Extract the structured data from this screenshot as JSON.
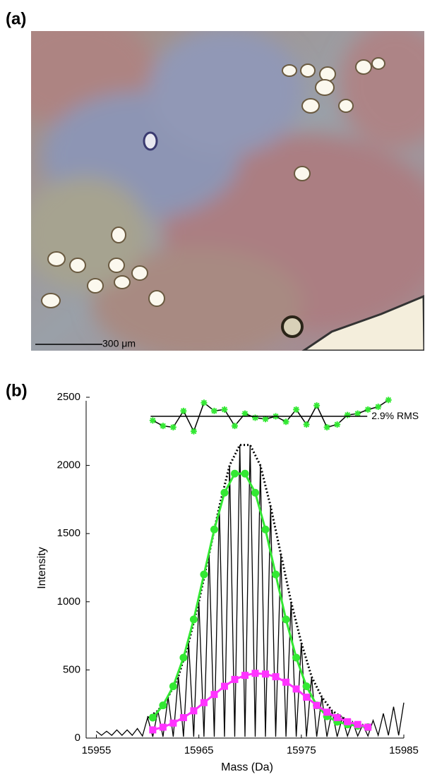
{
  "panel_a": {
    "label": "(a)",
    "scale_bar": "300 μm"
  },
  "chart_data": {
    "type": "line",
    "panel_label": "(b)",
    "xlabel": "Mass (Da)",
    "ylabel": "Intensity",
    "xlim": [
      15954,
      15985
    ],
    "ylim": [
      0,
      2500
    ],
    "xticks": [
      15955,
      15965,
      15975,
      15985
    ],
    "yticks": [
      0,
      500,
      1000,
      1500,
      2000,
      2500
    ],
    "rms_line": {
      "label": "2.9% RMS",
      "value": 2360
    },
    "series": [
      {
        "style": "line",
        "color": "#000000",
        "x": [
          15955,
          15955.5,
          15956,
          15956.5,
          15957,
          15957.5,
          15958,
          15958.5,
          15959,
          15959.5,
          15960,
          15960.5,
          15961,
          15961.5,
          15962,
          15962.5,
          15963,
          15963.5,
          15964,
          15964.5,
          15965,
          15965.5,
          15966,
          15966.5,
          15967,
          15967.5,
          15968,
          15968.5,
          15969,
          15969.5,
          15970,
          15970.5,
          15971,
          15971.5,
          15972,
          15972.5,
          15973,
          15973.5,
          15974,
          15974.5,
          15975,
          15975.5,
          15976,
          15976.5,
          15977,
          15977.5,
          15978,
          15978.5,
          15979,
          15979.5,
          15980,
          15980.5,
          15981,
          15981.5,
          15982,
          15982.5,
          15983,
          15983.5,
          15984,
          15984.5,
          15985
        ],
        "values": [
          50,
          20,
          50,
          20,
          60,
          20,
          60,
          20,
          70,
          15,
          150,
          10,
          200,
          10,
          300,
          10,
          450,
          10,
          700,
          10,
          1000,
          10,
          1350,
          10,
          1700,
          10,
          2000,
          10,
          2150,
          10,
          2150,
          10,
          2000,
          10,
          1700,
          10,
          1350,
          10,
          1000,
          10,
          700,
          10,
          450,
          10,
          300,
          10,
          200,
          10,
          150,
          15,
          120,
          15,
          100,
          15,
          130,
          20,
          180,
          20,
          230,
          20,
          260
        ]
      },
      {
        "style": "dotted",
        "color": "#000000",
        "x": [
          15960,
          15961,
          15962,
          15963,
          15964,
          15965,
          15966,
          15967,
          15968,
          15969,
          15970,
          15971,
          15972,
          15973,
          15974,
          15975,
          15976,
          15977,
          15978,
          15979,
          15980
        ],
        "values": [
          150,
          200,
          300,
          450,
          700,
          1000,
          1350,
          1700,
          2000,
          2150,
          2150,
          2000,
          1700,
          1350,
          1000,
          700,
          450,
          300,
          200,
          150,
          120
        ]
      },
      {
        "style": "circles",
        "color": "#33e833",
        "x": [
          15960.5,
          15961.5,
          15962.5,
          15963.5,
          15964.5,
          15965.5,
          15966.5,
          15967.5,
          15968.5,
          15969.5,
          15970.5,
          15971.5,
          15972.5,
          15973.5,
          15974.5,
          15975.5,
          15976.5,
          15977.5,
          15978.5,
          15979.5,
          15980.5,
          15981.5
        ],
        "values": [
          150,
          240,
          380,
          590,
          870,
          1200,
          1530,
          1800,
          1940,
          1940,
          1800,
          1530,
          1200,
          870,
          590,
          380,
          240,
          160,
          120,
          100,
          90,
          80
        ]
      },
      {
        "style": "squares",
        "color": "#ff33ff",
        "x": [
          15960.5,
          15961.5,
          15962.5,
          15963.5,
          15964.5,
          15965.5,
          15966.5,
          15967.5,
          15968.5,
          15969.5,
          15970.5,
          15971.5,
          15972.5,
          15973.5,
          15974.5,
          15975.5,
          15976.5,
          15977.5,
          15978.5,
          15979.5,
          15980.5,
          15981.5
        ],
        "values": [
          60,
          80,
          110,
          150,
          200,
          260,
          320,
          380,
          430,
          460,
          475,
          470,
          450,
          410,
          360,
          300,
          240,
          190,
          150,
          120,
          100,
          80
        ]
      },
      {
        "style": "stars",
        "color": "#33e833",
        "x": [
          15960.5,
          15961.5,
          15962.5,
          15963.5,
          15964.5,
          15965.5,
          15966.5,
          15967.5,
          15968.5,
          15969.5,
          15970.5,
          15971.5,
          15972.5,
          15973.5,
          15974.5,
          15975.5,
          15976.5,
          15977.5,
          15978.5,
          15979.5,
          15980.5,
          15981.5,
          15982.5,
          15983.5
        ],
        "values": [
          2330,
          2290,
          2280,
          2400,
          2250,
          2460,
          2400,
          2410,
          2290,
          2380,
          2350,
          2340,
          2360,
          2320,
          2410,
          2300,
          2440,
          2280,
          2300,
          2370,
          2380,
          2410,
          2430,
          2480
        ]
      }
    ]
  }
}
